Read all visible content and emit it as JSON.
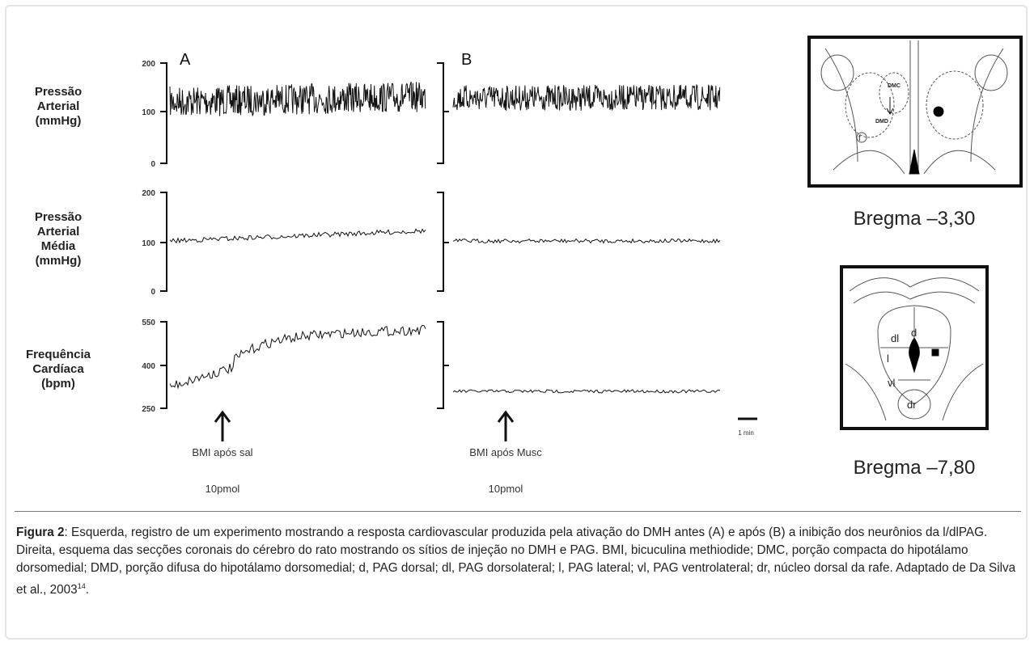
{
  "figure": {
    "panels": [
      {
        "label": "A",
        "stimulus": "BMI após sal",
        "dose": "10pmol"
      },
      {
        "label": "B",
        "stimulus": "BMI após Musc",
        "dose": "10pmol"
      }
    ],
    "rows": [
      {
        "label_lines": [
          "Pressão",
          "Arterial",
          "(mmHg)"
        ],
        "ticks": [
          "200",
          "100",
          "0"
        ]
      },
      {
        "label_lines": [
          "Pressão",
          "Arterial",
          "Média",
          "(mmHg)"
        ],
        "ticks": [
          "200",
          "100",
          "0"
        ]
      },
      {
        "label_lines": [
          "Frequência",
          "Cardíaca",
          "(bpm)"
        ],
        "ticks": [
          "550",
          "400",
          "250"
        ]
      }
    ],
    "scale_bar": "1 min",
    "sections": [
      {
        "caption": "Bregma –3,30",
        "labels": [
          "DMC",
          "DMD",
          "f"
        ]
      },
      {
        "caption": "Bregma –7,80",
        "labels": [
          "dl",
          "d",
          "l",
          "vl",
          "dr"
        ]
      }
    ]
  },
  "caption": {
    "label": "Figura 2",
    "text": ": Esquerda, registro de um experimento mostrando a resposta cardiovascular produzida pela ativação do DMH antes (A) e após (B) a inibição dos neurônios da l/dlPAG. Direita, esquema  das secções coronais do cérebro do rato mostrando os sítios de injeção no DMH e PAG. BMI, bicuculina methiodide; DMC, porção compacta do hipotálamo dorsomedial; DMD, porção difusa do hipotálamo dorsomedial; d, PAG dorsal; dl, PAG dorsolateral; l, PAG lateral; vl, PAG ventrolateral; dr, núcleo dorsal da rafe. Adaptado de Da Silva et  al., 2003",
    "ref": "14",
    "end": "."
  }
}
